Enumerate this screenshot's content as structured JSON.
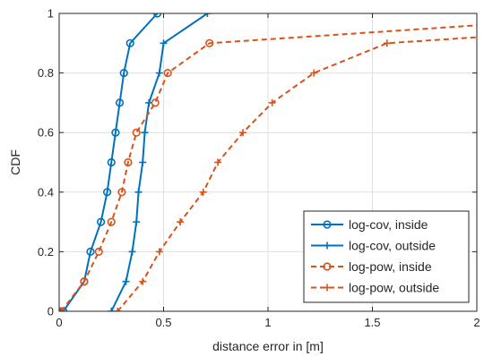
{
  "chart_data": {
    "type": "line",
    "title": "",
    "xlabel": "distance error in [m]",
    "ylabel": "CDF",
    "xlim": [
      0,
      2
    ],
    "ylim": [
      0,
      1
    ],
    "xticks": [
      0,
      0.5,
      1,
      1.5,
      2
    ],
    "xtick_labels": [
      "0",
      "0.5",
      "1",
      "1.5",
      "2"
    ],
    "yticks": [
      0,
      0.2,
      0.4,
      0.6,
      0.8,
      1
    ],
    "ytick_labels": [
      "0",
      "0.2",
      "0.4",
      "0.6",
      "0.8",
      "1"
    ],
    "grid": true,
    "legend_position": "bottom-right",
    "series": [
      {
        "name": "log-cov, inside",
        "color": "#0072BD",
        "line": "solid",
        "marker": "circle",
        "x": [
          0.02,
          0.12,
          0.15,
          0.2,
          0.23,
          0.25,
          0.27,
          0.29,
          0.31,
          0.34,
          0.47
        ],
        "y": [
          0,
          0.1,
          0.2,
          0.3,
          0.4,
          0.5,
          0.6,
          0.7,
          0.8,
          0.9,
          1
        ]
      },
      {
        "name": "log-cov, outside",
        "color": "#0072BD",
        "line": "solid",
        "marker": "plus",
        "x": [
          0.25,
          0.32,
          0.35,
          0.37,
          0.38,
          0.4,
          0.41,
          0.43,
          0.48,
          0.5,
          0.71
        ],
        "y": [
          0,
          0.1,
          0.2,
          0.3,
          0.4,
          0.5,
          0.6,
          0.7,
          0.8,
          0.9,
          1
        ]
      },
      {
        "name": "log-pow, inside",
        "color": "#D95319",
        "line": "dashed",
        "marker": "circle",
        "x": [
          0.01,
          0.12,
          0.19,
          0.25,
          0.3,
          0.33,
          0.37,
          0.46,
          0.52,
          0.72,
          2.0
        ],
        "y": [
          0,
          0.1,
          0.2,
          0.3,
          0.4,
          0.5,
          0.6,
          0.7,
          0.8,
          0.9,
          0.96
        ]
      },
      {
        "name": "log-pow, outside",
        "color": "#D95319",
        "line": "dashed",
        "marker": "plus",
        "x": [
          0.28,
          0.4,
          0.48,
          0.58,
          0.69,
          0.76,
          0.88,
          1.02,
          1.22,
          1.57,
          2.0
        ],
        "y": [
          0,
          0.1,
          0.2,
          0.3,
          0.4,
          0.5,
          0.6,
          0.7,
          0.8,
          0.9,
          0.92
        ]
      }
    ]
  }
}
